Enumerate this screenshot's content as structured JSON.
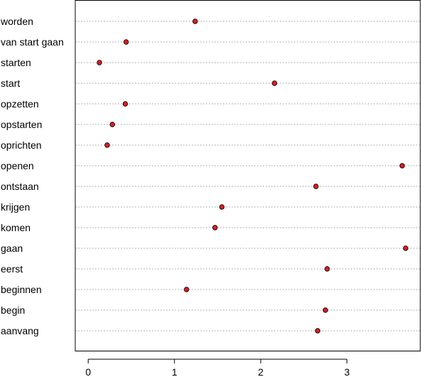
{
  "chart_data": {
    "type": "scatter",
    "subtype": "dotchart",
    "title": "",
    "xlabel": "",
    "ylabel": "",
    "xlim": [
      -0.15,
      3.85
    ],
    "xticks": [
      0,
      1,
      2,
      3
    ],
    "xtick_labels": [
      "0",
      "1",
      "2",
      "3"
    ],
    "point_color": "#e31a1c",
    "grid": true,
    "categories": [
      "worden",
      "van start gaan",
      "starten",
      "start",
      "opzetten",
      "opstarten",
      "oprichten",
      "openen",
      "ontstaan",
      "krijgen",
      "komen",
      "gaan",
      "eerst",
      "beginnen",
      "begin",
      "aanvang"
    ],
    "values": [
      1.24,
      0.44,
      0.13,
      2.16,
      0.43,
      0.28,
      0.22,
      3.64,
      2.64,
      1.55,
      1.47,
      3.68,
      2.77,
      1.14,
      2.75,
      2.66
    ]
  }
}
